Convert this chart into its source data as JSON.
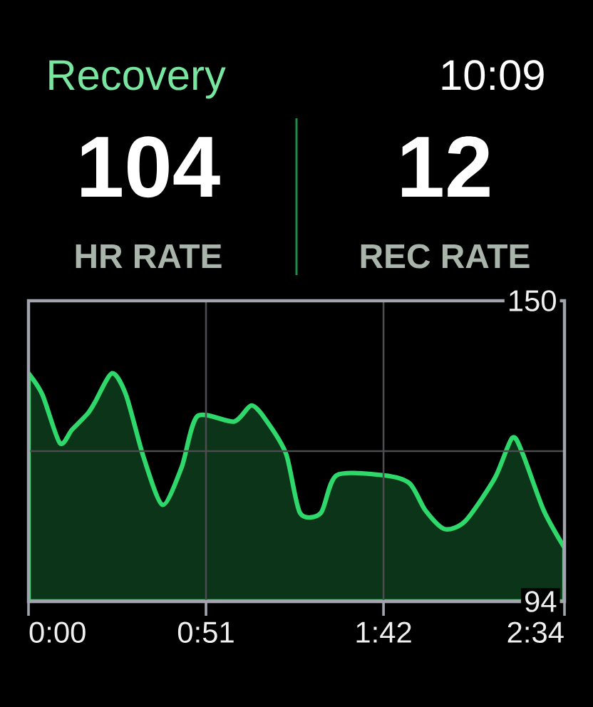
{
  "chart_data": {
    "type": "area",
    "title": "Recovery",
    "annotations": [
      "10:09",
      "104",
      "HR RATE",
      "12",
      "REC RATE"
    ],
    "x": [
      0,
      4,
      9,
      12.5,
      17,
      19,
      24,
      28,
      33,
      38.5,
      44,
      48.5,
      59,
      64,
      68,
      74,
      78,
      84,
      88.5,
      102,
      109.5,
      114,
      119.5,
      125.5,
      134,
      139,
      142,
      148,
      154
    ],
    "series": [
      {
        "color": "#2fd86a",
        "values": [
          136.5,
          132.5,
          123.5,
          126,
          129,
          131,
          136.5,
          132.5,
          121,
          112,
          119,
          128.5,
          127.5,
          130.5,
          128,
          121.5,
          110.5,
          110.5,
          117.5,
          117.5,
          116,
          111,
          107.5,
          109,
          117,
          124.5,
          121.5,
          111,
          104
        ]
      }
    ],
    "xlim": [
      0,
      154
    ],
    "xticks": [
      {
        "value": 0,
        "label": "0:00"
      },
      {
        "value": 51,
        "label": "0:51"
      },
      {
        "value": 102,
        "label": "1:42"
      },
      {
        "value": 154,
        "label": "2:34"
      }
    ],
    "ylim": [
      94,
      150
    ],
    "yticks": [
      94,
      {
        "value": 122,
        "label": null
      },
      150
    ],
    "grid": true
  }
}
